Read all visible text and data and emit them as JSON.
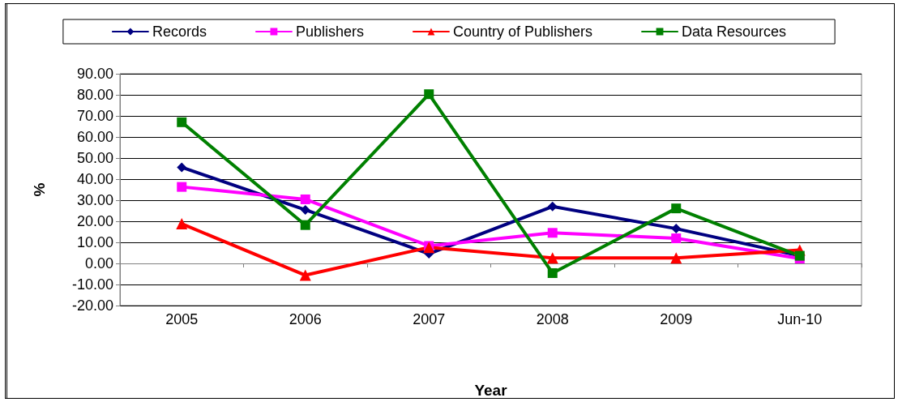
{
  "chart_data": {
    "type": "line",
    "xlabel": "Year",
    "ylabel": "%",
    "categories": [
      "2005",
      "2006",
      "2007",
      "2008",
      "2009",
      "Jun-10"
    ],
    "series": [
      {
        "name": "Records",
        "color": "#000080",
        "marker": "diamond",
        "values": [
          45.6,
          25.4,
          4.6,
          27.0,
          16.5,
          3.6
        ]
      },
      {
        "name": "Publishers",
        "color": "#ff00ff",
        "marker": "square",
        "values": [
          36.3,
          30.4,
          8.3,
          14.5,
          11.9,
          2.3
        ]
      },
      {
        "name": "Country of Publishers",
        "color": "#ff0000",
        "marker": "triangle",
        "values": [
          18.8,
          -5.6,
          7.6,
          2.6,
          2.6,
          6.3
        ]
      },
      {
        "name": "Data Resources",
        "color": "#008000",
        "marker": "square",
        "values": [
          67.0,
          18.2,
          80.3,
          -4.6,
          26.1,
          3.6
        ]
      }
    ],
    "ylim": [
      -20,
      90
    ],
    "yticks": [
      {
        "value": -20,
        "label": "-20.00"
      },
      {
        "value": -10,
        "label": "-10.00"
      },
      {
        "value": 0,
        "label": "0.00"
      },
      {
        "value": 10,
        "label": "10.00"
      },
      {
        "value": 20,
        "label": "20.00"
      },
      {
        "value": 30,
        "label": "30.00"
      },
      {
        "value": 40,
        "label": "40.00"
      },
      {
        "value": 50,
        "label": "50.00"
      },
      {
        "value": 60,
        "label": "60.00"
      },
      {
        "value": 70,
        "label": "70.00"
      },
      {
        "value": 80,
        "label": "80.00"
      },
      {
        "value": 90,
        "label": "90.00"
      }
    ],
    "grid": "y",
    "legend": "top",
    "line_style": "solid"
  }
}
